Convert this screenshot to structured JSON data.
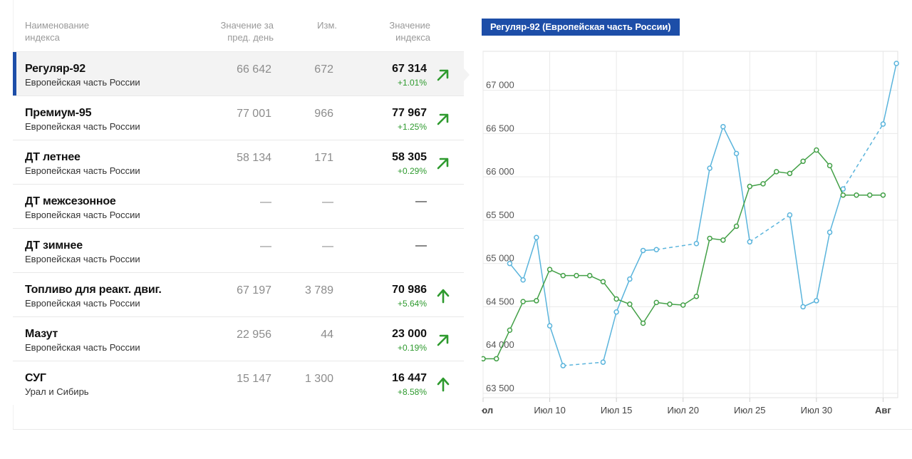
{
  "table": {
    "headers": {
      "name": "Наименование\nиндекса",
      "prev": "Значение за\nпред. день",
      "change": "Изм.",
      "value": "Значение\nиндекса"
    },
    "rows": [
      {
        "name": "Регуляр-92",
        "region": "Европейская часть России",
        "prev": "66 642",
        "change": "672",
        "value": "67 314",
        "pct": "+1.01%",
        "trend": "up-right",
        "active": true
      },
      {
        "name": "Премиум-95",
        "region": "Европейская часть России",
        "prev": "77 001",
        "change": "966",
        "value": "77 967",
        "pct": "+1.25%",
        "trend": "up-right",
        "active": false
      },
      {
        "name": "ДТ летнее",
        "region": "Европейская часть России",
        "prev": "58 134",
        "change": "171",
        "value": "58 305",
        "pct": "+0.29%",
        "trend": "up-right",
        "active": false
      },
      {
        "name": "ДТ межсезонное",
        "region": "Европейская часть России",
        "prev": "—",
        "change": "—",
        "value": "—",
        "pct": "",
        "trend": "none",
        "active": false
      },
      {
        "name": "ДТ зимнее",
        "region": "Европейская часть России",
        "prev": "—",
        "change": "—",
        "value": "—",
        "pct": "",
        "trend": "none",
        "active": false
      },
      {
        "name": "Топливо для реакт. двиг.",
        "region": "Европейская часть России",
        "prev": "67 197",
        "change": "3 789",
        "value": "70 986",
        "pct": "+5.64%",
        "trend": "up",
        "active": false
      },
      {
        "name": "Мазут",
        "region": "Европейская часть России",
        "prev": "22 956",
        "change": "44",
        "value": "23 000",
        "pct": "+0.19%",
        "trend": "up-right",
        "active": false
      },
      {
        "name": "СУГ",
        "region": "Урал и Сибирь",
        "prev": "15 147",
        "change": "1 300",
        "value": "16 447",
        "pct": "+8.58%",
        "trend": "up",
        "active": false
      }
    ]
  },
  "colors": {
    "accent": "#1d4ea8",
    "positive": "#2e9a2e",
    "series_blue": "#5ab4dc",
    "series_green": "#43a047",
    "grid": "#e9e9e9"
  },
  "chart_data": {
    "type": "line",
    "title": "Регуляр-92 (Европейская часть России)",
    "x_unit": "day",
    "x_start_label": "Июл",
    "x_ticks": [
      {
        "day": 5,
        "label": "Июл",
        "bold": true
      },
      {
        "day": 10,
        "label": "Июл 10",
        "bold": false
      },
      {
        "day": 15,
        "label": "Июл 15",
        "bold": false
      },
      {
        "day": 20,
        "label": "Июл 20",
        "bold": false
      },
      {
        "day": 25,
        "label": "Июл 25",
        "bold": false
      },
      {
        "day": 30,
        "label": "Июл 30",
        "bold": false
      },
      {
        "day": 35,
        "label": "Авг",
        "bold": true
      }
    ],
    "x_range": [
      5,
      36.1
    ],
    "y_ticks": [
      {
        "value": 63500,
        "label": "63 500"
      },
      {
        "value": 64000,
        "label": "64 000"
      },
      {
        "value": 64500,
        "label": "64 500"
      },
      {
        "value": 65000,
        "label": "65 000"
      },
      {
        "value": 65500,
        "label": "65 500"
      },
      {
        "value": 66000,
        "label": "66 000"
      },
      {
        "value": 66500,
        "label": "66 500"
      },
      {
        "value": 67000,
        "label": "67 000"
      }
    ],
    "ylim": [
      63450,
      67450
    ],
    "grid": true,
    "series": [
      {
        "color_key": "series_blue",
        "points": [
          {
            "x": 7,
            "y": 65000
          },
          {
            "x": 8,
            "y": 64810
          },
          {
            "x": 9,
            "y": 65300
          },
          {
            "x": 10,
            "y": 64280
          },
          {
            "x": 11,
            "y": 63820
          },
          {
            "x": 14,
            "y": 63860
          },
          {
            "x": 15,
            "y": 64440
          },
          {
            "x": 16,
            "y": 64820
          },
          {
            "x": 17,
            "y": 65150
          },
          {
            "x": 18,
            "y": 65160
          },
          {
            "x": 21,
            "y": 65230
          },
          {
            "x": 22,
            "y": 66100
          },
          {
            "x": 23,
            "y": 66580
          },
          {
            "x": 24,
            "y": 66270
          },
          {
            "x": 25,
            "y": 65250
          },
          {
            "x": 28,
            "y": 65560
          },
          {
            "x": 29,
            "y": 64500
          },
          {
            "x": 30,
            "y": 64570
          },
          {
            "x": 31,
            "y": 65360
          },
          {
            "x": 32,
            "y": 65860
          },
          {
            "x": 35,
            "y": 66610
          },
          {
            "x": 36,
            "y": 67310
          }
        ],
        "dashed_segments": [
          [
            11,
            14
          ],
          [
            18,
            21
          ],
          [
            25,
            28
          ],
          [
            32,
            35
          ]
        ]
      },
      {
        "color_key": "series_green",
        "points": [
          {
            "x": 5,
            "y": 63900
          },
          {
            "x": 6,
            "y": 63900
          },
          {
            "x": 7,
            "y": 64230
          },
          {
            "x": 8,
            "y": 64560
          },
          {
            "x": 9,
            "y": 64570
          },
          {
            "x": 10,
            "y": 64930
          },
          {
            "x": 11,
            "y": 64860
          },
          {
            "x": 12,
            "y": 64860
          },
          {
            "x": 13,
            "y": 64860
          },
          {
            "x": 14,
            "y": 64790
          },
          {
            "x": 15,
            "y": 64590
          },
          {
            "x": 16,
            "y": 64530
          },
          {
            "x": 17,
            "y": 64310
          },
          {
            "x": 18,
            "y": 64550
          },
          {
            "x": 19,
            "y": 64530
          },
          {
            "x": 20,
            "y": 64520
          },
          {
            "x": 21,
            "y": 64620
          },
          {
            "x": 22,
            "y": 65290
          },
          {
            "x": 23,
            "y": 65270
          },
          {
            "x": 24,
            "y": 65430
          },
          {
            "x": 25,
            "y": 65890
          },
          {
            "x": 26,
            "y": 65920
          },
          {
            "x": 27,
            "y": 66060
          },
          {
            "x": 28,
            "y": 66040
          },
          {
            "x": 29,
            "y": 66180
          },
          {
            "x": 30,
            "y": 66310
          },
          {
            "x": 31,
            "y": 66130
          },
          {
            "x": 32,
            "y": 65790
          },
          {
            "x": 33,
            "y": 65790
          },
          {
            "x": 34,
            "y": 65790
          },
          {
            "x": 35,
            "y": 65790
          }
        ],
        "dashed_segments": [
          [
            30,
            35
          ]
        ]
      }
    ]
  }
}
